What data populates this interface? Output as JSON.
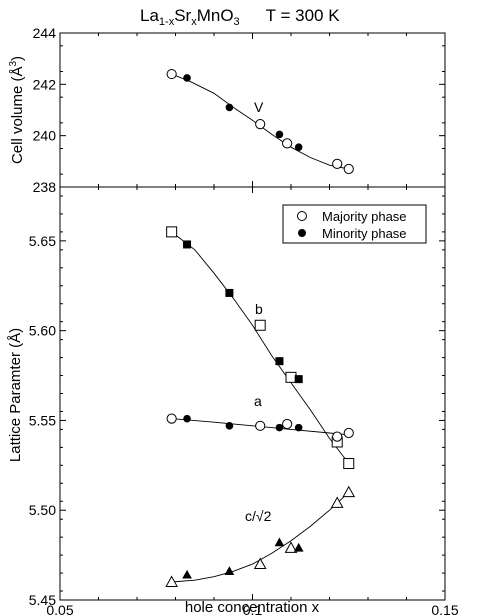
{
  "chart_data": [
    {
      "type": "scatter",
      "panel": "top",
      "title": "La1-xSrxMnO3     T = 300 K",
      "title_parts": {
        "compound_base": "La",
        "compound_sub1": "1-x",
        "compound_mid": "Sr",
        "compound_sub2": "x",
        "compound_end": "MnO",
        "compound_sub3": "3",
        "temperature": "T = 300 K"
      },
      "ylabel": "Cell volume (Å³)",
      "ylabel_parts": {
        "main": "Cell volume (Å",
        "sup": "3",
        "close": ")"
      },
      "xlim": [
        0.05,
        0.15
      ],
      "ylim": [
        238,
        244
      ],
      "y_ticks": [
        "238",
        "240",
        "242",
        "244"
      ],
      "grid": false,
      "series": [
        {
          "label": "V",
          "majority": {
            "x": [
              0.079,
              0.102,
              0.109,
              0.122,
              0.125
            ],
            "y": [
              242.4,
              240.45,
              239.7,
              238.9,
              238.7
            ]
          },
          "minority": {
            "x": [
              0.083,
              0.094,
              0.107,
              0.112
            ],
            "y": [
              242.25,
              241.1,
              240.05,
              239.55
            ]
          },
          "fit": {
            "x": [
              0.079,
              0.084,
              0.09,
              0.095,
              0.1,
              0.105,
              0.11,
              0.115,
              0.12,
              0.125
            ],
            "y": [
              242.4,
              242.1,
              241.65,
              241.1,
              240.6,
              240.05,
              239.55,
              239.15,
              238.85,
              238.7
            ]
          }
        }
      ]
    },
    {
      "type": "scatter",
      "panel": "bottom",
      "xlabel": "hole concentration x",
      "ylabel": "Lattice Paramter (Å)",
      "xlim": [
        0.05,
        0.15
      ],
      "ylim": [
        5.45,
        5.68
      ],
      "x_ticks": [
        "0.05",
        "0.1",
        "0.15"
      ],
      "y_ticks": [
        "5.45",
        "5.50",
        "5.55",
        "5.60",
        "5.65"
      ],
      "grid": false,
      "legend": {
        "position": "top-right",
        "entries": [
          "Majority phase",
          "Minority phase"
        ]
      },
      "series": [
        {
          "label": "b",
          "marker": "square",
          "majority": {
            "x": [
              0.079,
              0.102,
              0.11,
              0.122,
              0.125
            ],
            "y": [
              5.655,
              5.603,
              5.574,
              5.538,
              5.526
            ]
          },
          "minority": {
            "x": [
              0.083,
              0.094,
              0.107,
              0.112
            ],
            "y": [
              5.648,
              5.621,
              5.583,
              5.573
            ]
          },
          "fit": {
            "x": [
              0.079,
              0.085,
              0.09,
              0.095,
              0.1,
              0.105,
              0.11,
              0.115,
              0.12,
              0.125
            ],
            "y": [
              5.655,
              5.645,
              5.632,
              5.618,
              5.603,
              5.586,
              5.571,
              5.556,
              5.54,
              5.526
            ]
          }
        },
        {
          "label": "a",
          "marker": "circle",
          "majority": {
            "x": [
              0.079,
              0.102,
              0.109,
              0.122,
              0.125
            ],
            "y": [
              5.551,
              5.547,
              5.548,
              5.541,
              5.543
            ]
          },
          "minority": {
            "x": [
              0.083,
              0.094,
              0.107,
              0.112
            ],
            "y": [
              5.551,
              5.547,
              5.546,
              5.546
            ]
          },
          "fit": {
            "x": [
              0.079,
              0.09,
              0.1,
              0.11,
              0.12,
              0.125
            ],
            "y": [
              5.551,
              5.549,
              5.547,
              5.545,
              5.543,
              5.542
            ]
          }
        },
        {
          "label": "c/√2",
          "marker": "triangle",
          "majority": {
            "x": [
              0.079,
              0.102,
              0.11,
              0.122,
              0.125
            ],
            "y": [
              5.46,
              5.47,
              5.479,
              5.504,
              5.51
            ]
          },
          "minority": {
            "x": [
              0.083,
              0.094,
              0.107,
              0.112
            ],
            "y": [
              5.464,
              5.466,
              5.482,
              5.479
            ]
          },
          "fit": {
            "x": [
              0.079,
              0.085,
              0.09,
              0.095,
              0.1,
              0.105,
              0.11,
              0.115,
              0.12,
              0.125
            ],
            "y": [
              5.46,
              5.461,
              5.463,
              5.466,
              5.47,
              5.476,
              5.483,
              5.491,
              5.5,
              5.51
            ]
          }
        }
      ]
    }
  ]
}
